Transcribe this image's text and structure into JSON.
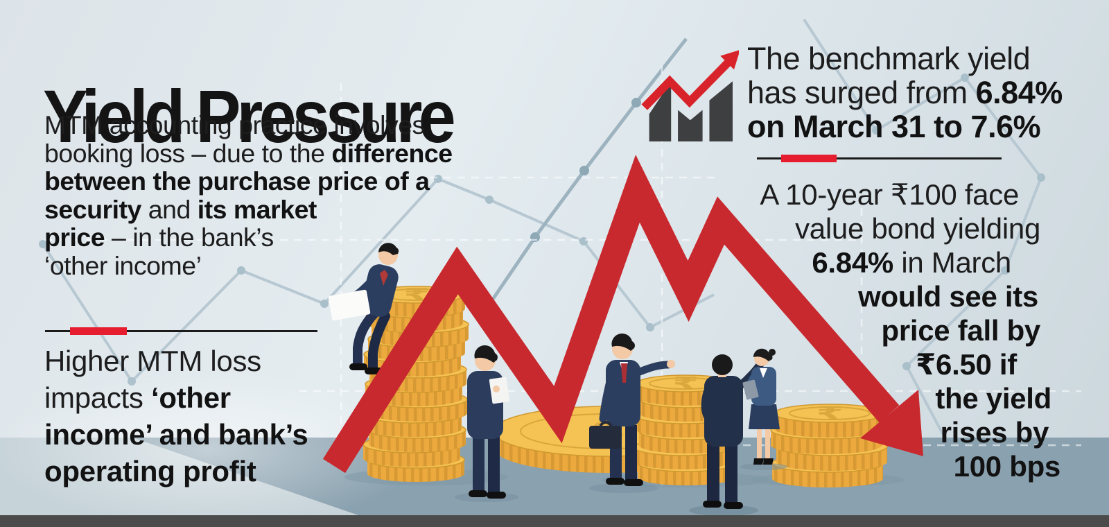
{
  "title": "Yield Pressure",
  "intro": {
    "lines": [
      [
        {
          "t": "MTM accounting practice involves"
        }
      ],
      [
        {
          "t": "booking loss – due to the "
        },
        {
          "t": "difference",
          "b": true
        }
      ],
      [
        {
          "t": "between the purchase price of a",
          "b": true
        }
      ],
      [
        {
          "t": "security",
          "b": true
        },
        {
          "t": " and "
        },
        {
          "t": "its market",
          "b": true
        }
      ],
      [
        {
          "t": "price",
          "b": true
        },
        {
          "t": " – in the bank’s"
        }
      ],
      [
        {
          "t": "‘other income’"
        }
      ]
    ]
  },
  "left_note": {
    "lines": [
      [
        {
          "t": "Higher MTM loss"
        }
      ],
      [
        {
          "t": "impacts "
        },
        {
          "t": "‘other",
          "b": true
        }
      ],
      [
        {
          "t": "income’ and bank’s",
          "b": true
        }
      ],
      [
        {
          "t": "operating profit",
          "b": true
        }
      ]
    ]
  },
  "benchmark": {
    "lines": [
      [
        {
          "t": "The benchmark yield"
        }
      ],
      [
        {
          "t": "has surged from "
        },
        {
          "t": "6.84%",
          "b": true
        }
      ],
      [
        {
          "t": "on March 31 to 7.6%",
          "b": true
        }
      ]
    ]
  },
  "bond": {
    "lines": [
      [
        {
          "t": "A 10-year ₹100 face"
        }
      ],
      [
        {
          "t": "value bond yielding"
        }
      ],
      [
        {
          "t": "6.84%",
          "b": true
        },
        {
          "t": " in March"
        }
      ],
      [
        {
          "t": "would see its",
          "b": true
        }
      ],
      [
        {
          "t": "price fall by",
          "b": true
        }
      ],
      [
        {
          "t": "₹6.50 if",
          "b": true
        }
      ],
      [
        {
          "t": "the yield",
          "b": true
        }
      ],
      [
        {
          "t": "rises by",
          "b": true
        }
      ],
      [
        {
          "t": "100 bps",
          "b": true
        }
      ]
    ]
  },
  "icons": {
    "growth_chart_icon": "bar-chart-with-rising-red-arrow"
  },
  "colors": {
    "accent_red": "#d8232a",
    "zigzag_red": "#c8292e",
    "text": "#1d1d1e",
    "icon_bar_gray": "#3e3f41",
    "coin_gold": "#eca93d",
    "coin_face_gold": "#f5c353",
    "floor_blue_gray": "#8aa1af",
    "footer_bar_gray": "#4b4b4b",
    "suit_navy": "#2c3e5f"
  }
}
